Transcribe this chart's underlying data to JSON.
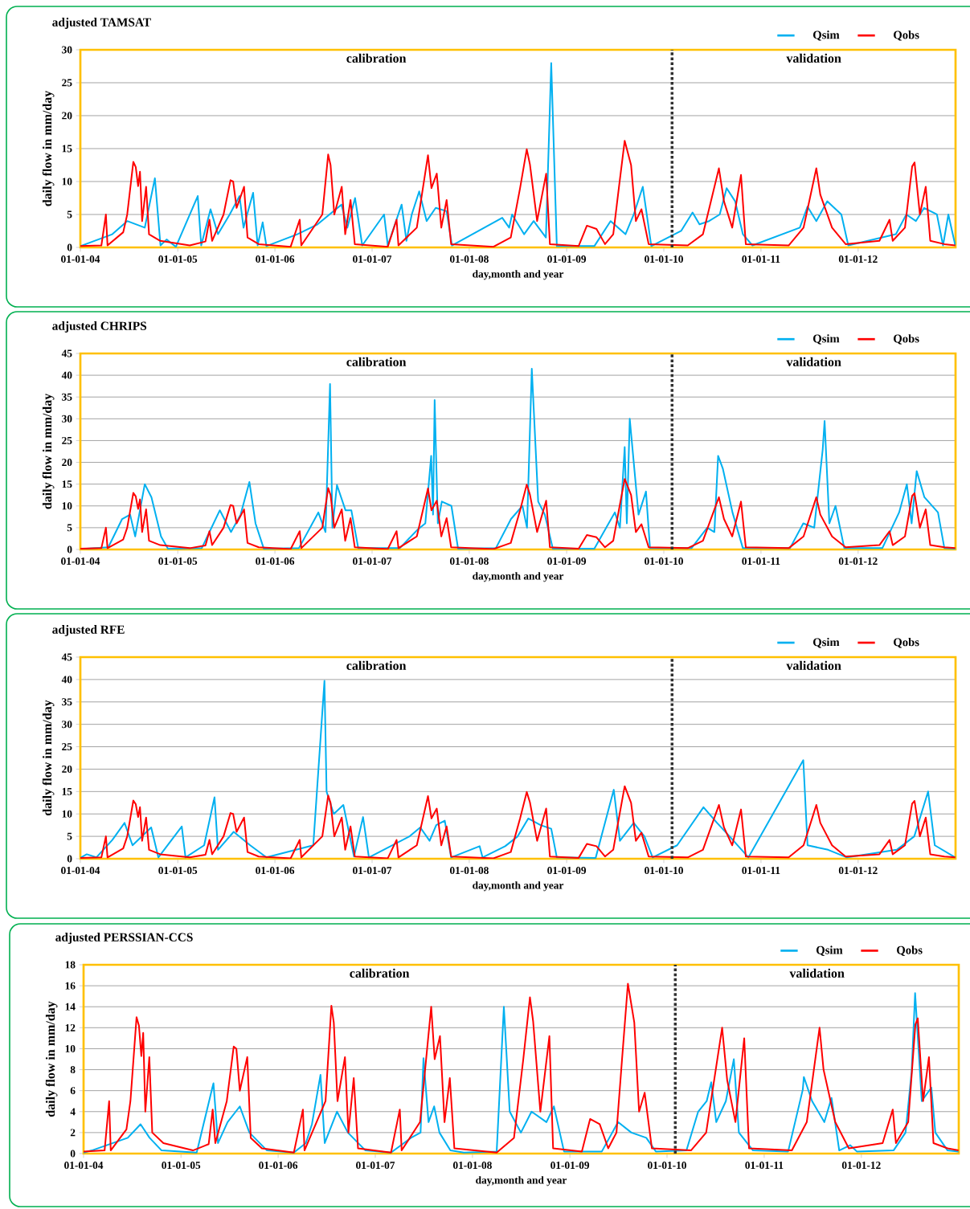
{
  "chart_data": [
    {
      "type": "line",
      "title": "adjusted TAMSAT",
      "xlabel": "day,month and year",
      "ylabel": "daily flow in mm/day",
      "xlim": [
        "2004-01-01",
        "2013-01-01"
      ],
      "xticks": [
        {
          "value": "2004-01-01",
          "label": "01-01-04"
        },
        {
          "value": "2005-01-01",
          "label": "01-01-05"
        },
        {
          "value": "2006-01-01",
          "label": "01-01-06"
        },
        {
          "value": "2007-01-01",
          "label": "01-01-07"
        },
        {
          "value": "2008-01-01",
          "label": "01-01-08"
        },
        {
          "value": "2009-01-01",
          "label": "01-01-09"
        },
        {
          "value": "2010-01-01",
          "label": "01-01-10"
        },
        {
          "value": "2011-01-01",
          "label": "01-01-11"
        },
        {
          "value": "2012-01-01",
          "label": "01-01-12"
        }
      ],
      "ylim": [
        0,
        30
      ],
      "yticks": [
        0,
        5,
        10,
        15,
        20,
        25,
        30
      ],
      "grid": "y",
      "legend": "top right",
      "ref_lines": [
        {
          "axis": "x",
          "value": "2010-02-01",
          "color": "#303030",
          "line_style": "dotted"
        }
      ],
      "annotations": [
        "calibration",
        "validation"
      ],
      "series": [
        {
          "name": "Qsim",
          "color": "#00b0f0",
          "x": [
            "2004-01-01",
            "2004-04-30",
            "2004-06-25",
            "2004-08-30",
            "2004-10-07",
            "2004-10-28",
            "2004-11-20",
            "2004-12-25",
            "2005-03-17",
            "2005-03-30",
            "2005-05-04",
            "2005-06-01",
            "2005-07-15",
            "2005-08-21",
            "2005-09-05",
            "2005-10-11",
            "2005-10-28",
            "2005-11-16",
            "2005-11-30",
            "2006-03-26",
            "2006-06-10",
            "2006-07-25",
            "2006-09-08",
            "2006-09-30",
            "2006-10-29",
            "2006-11-25",
            "2007-02-15",
            "2007-03-01",
            "2007-04-22",
            "2007-05-10",
            "2007-05-30",
            "2007-06-27",
            "2007-07-25",
            "2007-08-28",
            "2007-10-08",
            "2007-10-28",
            "2008-05-04",
            "2008-05-30",
            "2008-06-10",
            "2008-07-25",
            "2008-08-30",
            "2008-10-15",
            "2008-11-04",
            "2008-11-25",
            "2009-04-15",
            "2009-06-15",
            "2009-08-10",
            "2009-09-10",
            "2009-10-14",
            "2009-11-15",
            "2010-03-07",
            "2010-04-19",
            "2010-05-15",
            "2010-06-20",
            "2010-07-30",
            "2010-08-25",
            "2010-09-26",
            "2010-10-25",
            "2010-11-30",
            "2011-05-27",
            "2011-06-25",
            "2011-07-28",
            "2011-09-07",
            "2011-10-30",
            "2011-11-25",
            "2012-05-22",
            "2012-06-30",
            "2012-08-05",
            "2012-09-05",
            "2012-10-23",
            "2012-11-15",
            "2012-12-05",
            "2012-12-31"
          ],
          "values": [
            0.2,
            2,
            4,
            3,
            10.5,
            0.3,
            1.2,
            0.1,
            7.8,
            0.3,
            5.8,
            2,
            5,
            7.8,
            3,
            8.3,
            0.3,
            3.8,
            0.2,
            2,
            3.5,
            5,
            6.5,
            3,
            7.5,
            0.3,
            5,
            0.3,
            6.5,
            1,
            5,
            8.5,
            4,
            6,
            5.5,
            0.3,
            4.5,
            3,
            5,
            2,
            4,
            1.5,
            28,
            0.2,
            0.2,
            4,
            2,
            5,
            9.2,
            0.2,
            2.5,
            5.3,
            3.5,
            4,
            5,
            9,
            7,
            2,
            0.3,
            3,
            6.2,
            4,
            7,
            5,
            0.3,
            2,
            5,
            4,
            6,
            5,
            0.3,
            5,
            0.3
          ]
        },
        {
          "name": "Qobs",
          "color": "#ff0000",
          "x": [
            "2004-01-01",
            "2004-03-20",
            "2004-04-06",
            "2004-04-12",
            "2004-06-10",
            "2004-06-25",
            "2004-07-18",
            "2004-07-27",
            "2004-08-05",
            "2004-08-12",
            "2004-08-20",
            "2004-09-04",
            "2004-09-15",
            "2004-10-27",
            "2005-02-15",
            "2005-04-15",
            "2005-04-30",
            "2005-05-10",
            "2005-06-22",
            "2005-07-18",
            "2005-07-28",
            "2005-08-10",
            "2005-09-07",
            "2005-09-20",
            "2005-11-01",
            "2006-03-01",
            "2006-04-04",
            "2006-04-10",
            "2006-06-28",
            "2006-07-20",
            "2006-07-29",
            "2006-08-12",
            "2006-09-09",
            "2006-09-22",
            "2006-10-12",
            "2006-10-28",
            "2007-03-01",
            "2007-04-03",
            "2007-04-10",
            "2007-06-18",
            "2007-07-30",
            "2007-08-12",
            "2007-09-01",
            "2007-09-18",
            "2007-10-08",
            "2007-10-25",
            "2008-04-01",
            "2008-06-05",
            "2008-07-10",
            "2008-08-04",
            "2008-08-16",
            "2008-09-12",
            "2008-10-16",
            "2008-10-30",
            "2009-02-15",
            "2009-03-18",
            "2009-04-23",
            "2009-05-25",
            "2009-06-25",
            "2009-07-16",
            "2009-08-07",
            "2009-08-31",
            "2009-09-18",
            "2009-10-09",
            "2009-11-05",
            "2010-04-01",
            "2010-05-28",
            "2010-07-27",
            "2010-08-15",
            "2010-09-15",
            "2010-10-18",
            "2010-11-05",
            "2011-04-15",
            "2011-06-10",
            "2011-07-28",
            "2011-08-12",
            "2011-09-25",
            "2011-11-15",
            "2012-03-21",
            "2012-04-28",
            "2012-05-10",
            "2012-06-25",
            "2012-07-22",
            "2012-07-31",
            "2012-08-20",
            "2012-09-11",
            "2012-09-28",
            "2012-11-20",
            "2012-12-31"
          ],
          "values": [
            0.2,
            0.3,
            5,
            0.3,
            2.3,
            5,
            13,
            12.2,
            9.3,
            11.5,
            4,
            9.2,
            2,
            1,
            0.3,
            0.9,
            4.2,
            1,
            5,
            10.2,
            10,
            6,
            9.2,
            1.5,
            0.5,
            0.1,
            4.2,
            0.3,
            5,
            14.1,
            12.5,
            5,
            9.2,
            2,
            7.2,
            0.5,
            0.1,
            4.2,
            0.3,
            3,
            14,
            9,
            11.2,
            3,
            7.2,
            0.5,
            0.1,
            1.5,
            9,
            14.9,
            12.6,
            4,
            11.2,
            0.5,
            0.2,
            3.3,
            2.8,
            0.5,
            2,
            9,
            16.2,
            12.5,
            4,
            5.8,
            0.5,
            0.3,
            2,
            12,
            7,
            3,
            11,
            0.5,
            0.3,
            3,
            12,
            8,
            3,
            0.5,
            1,
            4.2,
            1,
            3,
            12.3,
            12.9,
            5,
            9.2,
            1,
            0.5,
            0.3
          ]
        }
      ]
    },
    {
      "type": "line",
      "title": "adjusted CHRIPS",
      "xlabel": "day,month and year",
      "ylabel": "daily flow in mm/day",
      "xlim": [
        "2004-01-01",
        "2013-01-01"
      ],
      "xticks": [
        {
          "value": "2004-01-01",
          "label": "01-01-04"
        },
        {
          "value": "2005-01-01",
          "label": "01-01-05"
        },
        {
          "value": "2006-01-01",
          "label": "01-01-06"
        },
        {
          "value": "2007-01-01",
          "label": "01-01-07"
        },
        {
          "value": "2008-01-01",
          "label": "01-01-08"
        },
        {
          "value": "2009-01-01",
          "label": "01-01-09"
        },
        {
          "value": "2010-01-01",
          "label": "01-01-10"
        },
        {
          "value": "2011-01-01",
          "label": "01-01-11"
        },
        {
          "value": "2012-01-01",
          "label": "01-01-12"
        }
      ],
      "ylim": [
        0,
        45
      ],
      "yticks": [
        0,
        5,
        10,
        15,
        20,
        25,
        30,
        35,
        40,
        45
      ],
      "grid": "y",
      "legend": "top right",
      "ref_lines": [
        {
          "axis": "x",
          "value": "2010-02-01",
          "color": "#303030",
          "line_style": "dotted"
        }
      ],
      "annotations": [
        "calibration",
        "validation"
      ],
      "series": [
        {
          "name": "Qsim",
          "color": "#00b0f0",
          "x": [
            "2004-01-01",
            "2004-04-15",
            "2004-06-06",
            "2004-07-06",
            "2004-07-25",
            "2004-08-30",
            "2004-09-24",
            "2004-10-30",
            "2004-11-25",
            "2005-04-01",
            "2005-06-08",
            "2005-07-20",
            "2005-08-25",
            "2005-09-27",
            "2005-10-20",
            "2005-11-20",
            "2006-04-01",
            "2006-06-13",
            "2006-07-10",
            "2006-07-27",
            "2006-08-05",
            "2006-08-22",
            "2006-09-23",
            "2006-10-15",
            "2006-11-10",
            "2007-04-15",
            "2007-06-20",
            "2007-07-20",
            "2007-08-11",
            "2007-08-18",
            "2007-08-24",
            "2007-09-05",
            "2007-09-20",
            "2007-10-26",
            "2007-11-20",
            "2008-04-10",
            "2008-06-06",
            "2008-07-19",
            "2008-08-05",
            "2008-08-23",
            "2008-09-16",
            "2008-10-11",
            "2008-11-10",
            "2009-04-15",
            "2009-07-01",
            "2009-07-20",
            "2009-08-07",
            "2009-08-15",
            "2009-08-26",
            "2009-09-28",
            "2009-10-26",
            "2009-11-10",
            "2010-04-15",
            "2010-06-13",
            "2010-07-10",
            "2010-07-24",
            "2010-08-11",
            "2010-09-16",
            "2010-10-25",
            "2011-04-20",
            "2011-06-09",
            "2011-07-20",
            "2011-08-21",
            "2011-08-28",
            "2011-09-15",
            "2011-10-08",
            "2011-11-10",
            "2012-04-01",
            "2012-06-03",
            "2012-07-02",
            "2012-07-20",
            "2012-08-08",
            "2012-09-06",
            "2012-10-27",
            "2012-11-20",
            "2012-12-31"
          ],
          "values": [
            0.1,
            0.5,
            7,
            8,
            3,
            15,
            12,
            3,
            0.2,
            0.3,
            9,
            4,
            8,
            15.5,
            6,
            0.2,
            0.3,
            8.5,
            4,
            38,
            5,
            14.8,
            9,
            9,
            0.3,
            0.3,
            4.5,
            6,
            21.5,
            8,
            34.3,
            6,
            11,
            10,
            0.2,
            0.3,
            7,
            10,
            5,
            41.5,
            11,
            8,
            0.2,
            0.2,
            8.5,
            5,
            23.5,
            6,
            30,
            8,
            13.3,
            0.3,
            0.3,
            5,
            4,
            21.5,
            18.5,
            8.5,
            0.3,
            0.3,
            6,
            5,
            23,
            29.5,
            6,
            10,
            0.3,
            0.3,
            8.5,
            15,
            6,
            18,
            12,
            8.5,
            0.3,
            0.2
          ]
        },
        {
          "name": "Qobs",
          "color": "#ff0000",
          "x": [
            "2004-01-01",
            "2004-03-20",
            "2004-04-06",
            "2004-04-12",
            "2004-06-10",
            "2004-06-25",
            "2004-07-18",
            "2004-07-27",
            "2004-08-05",
            "2004-08-12",
            "2004-08-20",
            "2004-09-04",
            "2004-09-15",
            "2004-10-27",
            "2005-02-15",
            "2005-04-15",
            "2005-04-30",
            "2005-05-10",
            "2005-06-22",
            "2005-07-18",
            "2005-07-28",
            "2005-08-10",
            "2005-09-07",
            "2005-09-20",
            "2005-11-01",
            "2006-03-01",
            "2006-04-04",
            "2006-04-10",
            "2006-06-28",
            "2006-07-20",
            "2006-07-29",
            "2006-08-12",
            "2006-09-09",
            "2006-09-22",
            "2006-10-12",
            "2006-10-28",
            "2007-03-01",
            "2007-04-03",
            "2007-04-10",
            "2007-06-18",
            "2007-07-30",
            "2007-08-12",
            "2007-09-01",
            "2007-09-18",
            "2007-10-08",
            "2007-10-25",
            "2008-04-01",
            "2008-06-05",
            "2008-07-10",
            "2008-08-04",
            "2008-08-16",
            "2008-09-12",
            "2008-10-16",
            "2008-10-30",
            "2009-02-15",
            "2009-03-18",
            "2009-04-23",
            "2009-05-25",
            "2009-06-25",
            "2009-07-16",
            "2009-08-07",
            "2009-08-31",
            "2009-09-18",
            "2009-10-09",
            "2009-11-05",
            "2010-04-01",
            "2010-05-28",
            "2010-07-27",
            "2010-08-15",
            "2010-09-15",
            "2010-10-18",
            "2010-11-05",
            "2011-04-15",
            "2011-06-10",
            "2011-07-28",
            "2011-08-12",
            "2011-09-25",
            "2011-11-15",
            "2012-03-21",
            "2012-04-28",
            "2012-05-10",
            "2012-06-25",
            "2012-07-22",
            "2012-07-31",
            "2012-08-20",
            "2012-09-11",
            "2012-09-28",
            "2012-11-20",
            "2012-12-31"
          ],
          "values": [
            0.2,
            0.3,
            5,
            0.3,
            2.3,
            5,
            13,
            12.2,
            9.3,
            11.5,
            4,
            9.2,
            2,
            1,
            0.3,
            0.9,
            4.2,
            1,
            5,
            10.2,
            10,
            6,
            9.2,
            1.5,
            0.5,
            0.1,
            4.2,
            0.3,
            5,
            14.1,
            12.5,
            5,
            9.2,
            2,
            7.2,
            0.5,
            0.1,
            4.2,
            0.3,
            3,
            14,
            9,
            11.2,
            3,
            7.2,
            0.5,
            0.1,
            1.5,
            9,
            14.9,
            12.6,
            4,
            11.2,
            0.5,
            0.2,
            3.3,
            2.8,
            0.5,
            2,
            9,
            16.2,
            12.5,
            4,
            5.8,
            0.5,
            0.3,
            2,
            12,
            7,
            3,
            11,
            0.5,
            0.3,
            3,
            12,
            8,
            3,
            0.5,
            1,
            4.2,
            1,
            3,
            12.3,
            12.9,
            5,
            9.2,
            1,
            0.5,
            0.3
          ]
        }
      ]
    },
    {
      "type": "line",
      "title": "adjusted RFE",
      "xlabel": "day,month and year",
      "ylabel": "daily flow in mm/day",
      "xlim": [
        "2004-01-01",
        "2013-01-01"
      ],
      "xticks": [
        {
          "value": "2004-01-01",
          "label": "01-01-04"
        },
        {
          "value": "2005-01-01",
          "label": "01-01-05"
        },
        {
          "value": "2006-01-01",
          "label": "01-01-06"
        },
        {
          "value": "2007-01-01",
          "label": "01-01-07"
        },
        {
          "value": "2008-01-01",
          "label": "01-01-08"
        },
        {
          "value": "2009-01-01",
          "label": "01-01-09"
        },
        {
          "value": "2010-01-01",
          "label": "01-01-10"
        },
        {
          "value": "2011-01-01",
          "label": "01-01-11"
        },
        {
          "value": "2012-01-01",
          "label": "01-01-12"
        }
      ],
      "ylim": [
        0,
        45
      ],
      "yticks": [
        0,
        5,
        10,
        15,
        20,
        25,
        30,
        35,
        40,
        45
      ],
      "grid": "y",
      "legend": "top right",
      "ref_lines": [
        {
          "axis": "x",
          "value": "2010-02-01",
          "color": "#303030",
          "line_style": "dotted"
        }
      ],
      "annotations": [
        "calibration",
        "validation"
      ],
      "series": [
        {
          "name": "Qsim",
          "color": "#00b0f0",
          "x": [
            "2004-01-01",
            "2004-01-25",
            "2004-03-01",
            "2004-04-30",
            "2004-06-15",
            "2004-07-15",
            "2004-09-23",
            "2004-10-20",
            "2005-01-16",
            "2005-01-30",
            "2005-04-10",
            "2005-05-19",
            "2005-06-01",
            "2005-07-30",
            "2005-09-30",
            "2005-11-30",
            "2006-05-25",
            "2006-07-06",
            "2006-07-14",
            "2006-08-10",
            "2006-09-15",
            "2006-10-25",
            "2006-11-28",
            "2006-12-20",
            "2007-05-22",
            "2007-07-01",
            "2007-08-05",
            "2007-08-30",
            "2007-10-01",
            "2007-10-25",
            "2008-02-09",
            "2008-02-20",
            "2008-05-15",
            "2008-07-01",
            "2008-08-10",
            "2008-09-25",
            "2008-11-04",
            "2008-11-25",
            "2009-04-20",
            "2009-06-27",
            "2009-07-20",
            "2009-09-10",
            "2009-10-20",
            "2009-11-20",
            "2010-02-20",
            "2010-05-30",
            "2010-07-20",
            "2010-09-05",
            "2010-11-15",
            "2011-06-09",
            "2011-06-25",
            "2011-09-10",
            "2011-11-20",
            "2012-05-25",
            "2012-07-30",
            "2012-09-20",
            "2012-10-15",
            "2012-12-31"
          ],
          "values": [
            0.2,
            1,
            0.3,
            4.2,
            8,
            3,
            7,
            0.3,
            7.2,
            0.3,
            3,
            13.7,
            2,
            6,
            3,
            0.3,
            3,
            39.7,
            15,
            10,
            12,
            0.5,
            9.3,
            0.3,
            5,
            7,
            4,
            7.5,
            8.5,
            0.3,
            2.8,
            0.3,
            2.8,
            5,
            9,
            7.5,
            6.7,
            0.3,
            0.2,
            15.4,
            4,
            8,
            5,
            0.3,
            3,
            11.5,
            8,
            5,
            0.3,
            22,
            3,
            2,
            0.3,
            2,
            5,
            15,
            3,
            0.3
          ]
        },
        {
          "name": "Qobs",
          "color": "#ff0000",
          "x": [
            "2004-01-01",
            "2004-03-20",
            "2004-04-06",
            "2004-04-12",
            "2004-06-10",
            "2004-06-25",
            "2004-07-18",
            "2004-07-27",
            "2004-08-05",
            "2004-08-12",
            "2004-08-20",
            "2004-09-04",
            "2004-09-15",
            "2004-10-27",
            "2005-02-15",
            "2005-04-15",
            "2005-04-30",
            "2005-05-10",
            "2005-06-22",
            "2005-07-18",
            "2005-07-28",
            "2005-08-10",
            "2005-09-07",
            "2005-09-20",
            "2005-11-01",
            "2006-03-01",
            "2006-04-04",
            "2006-04-10",
            "2006-06-28",
            "2006-07-20",
            "2006-07-29",
            "2006-08-12",
            "2006-09-09",
            "2006-09-22",
            "2006-10-12",
            "2006-10-28",
            "2007-03-01",
            "2007-04-03",
            "2007-04-10",
            "2007-06-18",
            "2007-07-30",
            "2007-08-12",
            "2007-09-01",
            "2007-09-18",
            "2007-10-08",
            "2007-10-25",
            "2008-04-01",
            "2008-06-05",
            "2008-07-10",
            "2008-08-04",
            "2008-08-16",
            "2008-09-12",
            "2008-10-16",
            "2008-10-30",
            "2009-02-15",
            "2009-03-18",
            "2009-04-23",
            "2009-05-25",
            "2009-06-25",
            "2009-07-16",
            "2009-08-07",
            "2009-08-31",
            "2009-09-18",
            "2009-10-09",
            "2009-11-05",
            "2010-04-01",
            "2010-05-28",
            "2010-07-27",
            "2010-08-15",
            "2010-09-15",
            "2010-10-18",
            "2010-11-05",
            "2011-04-15",
            "2011-06-10",
            "2011-07-28",
            "2011-08-12",
            "2011-09-25",
            "2011-11-15",
            "2012-03-21",
            "2012-04-28",
            "2012-05-10",
            "2012-06-25",
            "2012-07-22",
            "2012-07-31",
            "2012-08-20",
            "2012-09-11",
            "2012-09-28",
            "2012-11-20",
            "2012-12-31"
          ],
          "values": [
            0.2,
            0.3,
            5,
            0.3,
            2.3,
            5,
            13,
            12.2,
            9.3,
            11.5,
            4,
            9.2,
            2,
            1,
            0.3,
            0.9,
            4.2,
            1,
            5,
            10.2,
            10,
            6,
            9.2,
            1.5,
            0.5,
            0.1,
            4.2,
            0.3,
            5,
            14.1,
            12.5,
            5,
            9.2,
            2,
            7.2,
            0.5,
            0.1,
            4.2,
            0.3,
            3,
            14,
            9,
            11.2,
            3,
            7.2,
            0.5,
            0.1,
            1.5,
            9,
            14.9,
            12.6,
            4,
            11.2,
            0.5,
            0.2,
            3.3,
            2.8,
            0.5,
            2,
            9,
            16.2,
            12.5,
            4,
            5.8,
            0.5,
            0.3,
            2,
            12,
            7,
            3,
            11,
            0.5,
            0.3,
            3,
            12,
            8,
            3,
            0.5,
            1,
            4.2,
            1,
            3,
            12.3,
            12.9,
            5,
            9.2,
            1,
            0.5,
            0.3
          ]
        }
      ]
    },
    {
      "type": "line",
      "title": "adjusted PERSSIAN-CCS",
      "xlabel": "day,month and year",
      "ylabel": "daily flow in mm/day",
      "xlim": [
        "2004-01-01",
        "2013-01-01"
      ],
      "xticks": [
        {
          "value": "2004-01-01",
          "label": "01-01-04"
        },
        {
          "value": "2005-01-01",
          "label": "01-01-05"
        },
        {
          "value": "2006-01-01",
          "label": "01-01-06"
        },
        {
          "value": "2007-01-01",
          "label": "01-01-07"
        },
        {
          "value": "2008-01-01",
          "label": "01-01-08"
        },
        {
          "value": "2009-01-01",
          "label": "01-01-09"
        },
        {
          "value": "2010-01-01",
          "label": "01-01-10"
        },
        {
          "value": "2011-01-01",
          "label": "01-01-11"
        },
        {
          "value": "2012-01-01",
          "label": "01-01-12"
        }
      ],
      "ylim": [
        0,
        18
      ],
      "yticks": [
        0,
        2,
        4,
        6,
        8,
        10,
        12,
        14,
        16,
        18
      ],
      "grid": "y",
      "legend": "top right",
      "ref_lines": [
        {
          "axis": "x",
          "value": "2010-02-01",
          "color": "#303030",
          "line_style": "dotted"
        }
      ],
      "annotations": [
        "calibration",
        "validation"
      ],
      "series": [
        {
          "name": "Qsim",
          "color": "#00b0f0",
          "x": [
            "2004-01-01",
            "2004-02-01",
            "2004-06-15",
            "2004-08-02",
            "2004-09-05",
            "2004-10-20",
            "2005-03-01",
            "2005-04-28",
            "2005-05-03",
            "2005-05-20",
            "2005-06-25",
            "2005-08-10",
            "2005-09-15",
            "2005-11-20",
            "2006-03-01",
            "2006-04-15",
            "2006-05-08",
            "2006-06-09",
            "2006-06-25",
            "2006-08-10",
            "2006-09-20",
            "2006-11-25",
            "2007-03-01",
            "2007-05-15",
            "2007-06-20",
            "2007-07-01",
            "2007-07-20",
            "2007-08-10",
            "2007-08-30",
            "2007-10-10",
            "2007-11-30",
            "2008-04-01",
            "2008-04-28",
            "2008-05-20",
            "2008-07-01",
            "2008-08-10",
            "2008-10-05",
            "2008-11-02",
            "2008-12-10",
            "2009-05-01",
            "2009-07-01",
            "2009-08-20",
            "2009-10-15",
            "2009-11-20",
            "2010-03-15",
            "2010-04-28",
            "2010-05-30",
            "2010-06-16",
            "2010-07-05",
            "2010-08-10",
            "2010-09-09",
            "2010-09-28",
            "2010-11-20",
            "2011-04-01",
            "2011-05-26",
            "2011-05-30",
            "2011-06-30",
            "2011-08-15",
            "2011-09-11",
            "2011-10-10",
            "2011-11-20",
            "2011-12-15",
            "2012-05-01",
            "2012-06-15",
            "2012-07-08",
            "2012-07-21",
            "2012-08-15",
            "2012-09-20",
            "2012-10-05",
            "2012-11-20",
            "2012-12-31"
          ],
          "values": [
            0.1,
            0.3,
            1.5,
            2.8,
            1.5,
            0.3,
            0.1,
            6.2,
            6.7,
            1,
            3,
            4.5,
            2,
            0.3,
            0.1,
            1,
            2.8,
            7.5,
            1,
            4,
            2,
            0.3,
            0.1,
            1.5,
            2,
            9.1,
            3,
            4.5,
            2,
            0.3,
            0.1,
            0.2,
            14,
            4,
            2,
            4,
            3,
            4.5,
            0.2,
            0.2,
            3,
            2,
            1.5,
            0.2,
            0.3,
            4,
            5,
            6.8,
            3,
            5,
            9,
            2,
            0.3,
            0.2,
            6.1,
            7.3,
            5,
            3,
            5.3,
            0.3,
            0.8,
            0.2,
            0.3,
            2,
            7.8,
            15.3,
            5,
            6.3,
            2,
            0.3,
            0.2
          ]
        },
        {
          "name": "Qobs",
          "color": "#ff0000",
          "x": [
            "2004-01-01",
            "2004-03-20",
            "2004-04-06",
            "2004-04-12",
            "2004-06-10",
            "2004-06-25",
            "2004-07-18",
            "2004-07-27",
            "2004-08-05",
            "2004-08-12",
            "2004-08-20",
            "2004-09-04",
            "2004-09-15",
            "2004-10-27",
            "2005-02-15",
            "2005-04-15",
            "2005-04-30",
            "2005-05-10",
            "2005-06-22",
            "2005-07-18",
            "2005-07-28",
            "2005-08-10",
            "2005-09-07",
            "2005-09-20",
            "2005-11-01",
            "2006-03-01",
            "2006-04-04",
            "2006-04-10",
            "2006-06-28",
            "2006-07-20",
            "2006-07-29",
            "2006-08-12",
            "2006-09-09",
            "2006-09-22",
            "2006-10-12",
            "2006-10-28",
            "2007-03-01",
            "2007-04-03",
            "2007-04-10",
            "2007-06-18",
            "2007-07-30",
            "2007-08-12",
            "2007-09-01",
            "2007-09-18",
            "2007-10-08",
            "2007-10-25",
            "2008-04-01",
            "2008-06-05",
            "2008-07-10",
            "2008-08-04",
            "2008-08-16",
            "2008-09-12",
            "2008-10-16",
            "2008-10-30",
            "2009-02-15",
            "2009-03-18",
            "2009-04-23",
            "2009-05-25",
            "2009-06-25",
            "2009-07-16",
            "2009-08-07",
            "2009-08-31",
            "2009-09-18",
            "2009-10-09",
            "2009-11-05",
            "2010-04-01",
            "2010-05-28",
            "2010-07-27",
            "2010-08-15",
            "2010-09-15",
            "2010-10-18",
            "2010-11-05",
            "2011-04-15",
            "2011-06-10",
            "2011-07-28",
            "2011-08-12",
            "2011-09-25",
            "2011-11-15",
            "2012-03-21",
            "2012-04-28",
            "2012-05-10",
            "2012-06-25",
            "2012-07-22",
            "2012-07-31",
            "2012-08-20",
            "2012-09-11",
            "2012-09-28",
            "2012-11-20",
            "2012-12-31"
          ],
          "values": [
            0.2,
            0.3,
            5,
            0.3,
            2.3,
            5,
            13,
            12.2,
            9.3,
            11.5,
            4,
            9.2,
            2,
            1,
            0.3,
            0.9,
            4.2,
            1,
            5,
            10.2,
            10,
            6,
            9.2,
            1.5,
            0.5,
            0.1,
            4.2,
            0.3,
            5,
            14.1,
            12.5,
            5,
            9.2,
            2,
            7.2,
            0.5,
            0.1,
            4.2,
            0.3,
            3,
            14,
            9,
            11.2,
            3,
            7.2,
            0.5,
            0.1,
            1.5,
            9,
            14.9,
            12.6,
            4,
            11.2,
            0.5,
            0.2,
            3.3,
            2.8,
            0.5,
            2,
            9,
            16.2,
            12.5,
            4,
            5.8,
            0.5,
            0.3,
            2,
            12,
            7,
            3,
            11,
            0.5,
            0.3,
            3,
            12,
            8,
            3,
            0.5,
            1,
            4.2,
            1,
            3,
            12.3,
            12.9,
            5,
            9.2,
            1,
            0.5,
            0.3
          ]
        }
      ]
    }
  ]
}
